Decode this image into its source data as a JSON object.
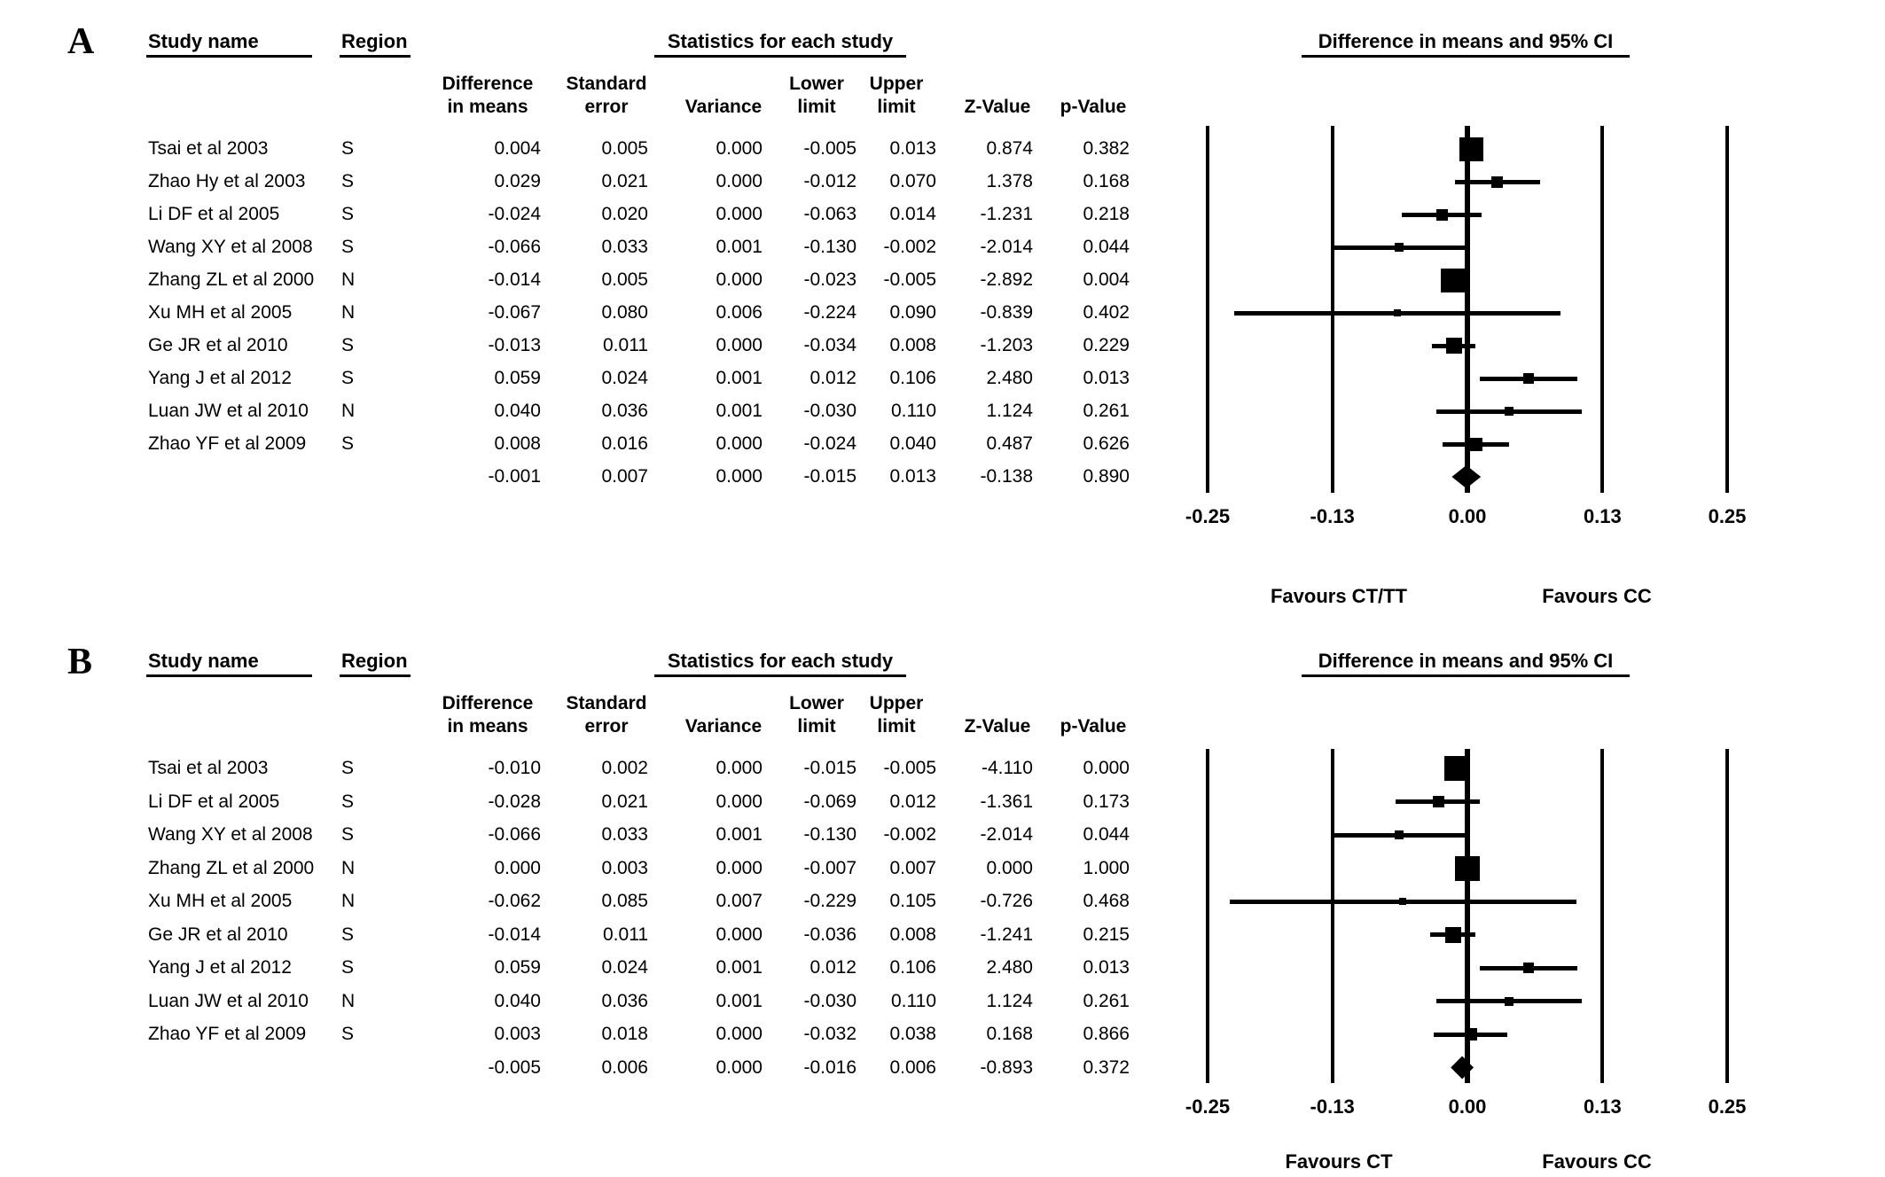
{
  "page": {
    "background": "#ffffff",
    "ink": "#000000"
  },
  "chart_data": [
    {
      "type": "forest",
      "panel_label": "A",
      "stats_title": "Statistics for each study",
      "plot_title": "Difference in means and 95% CI",
      "study_header": "Study name",
      "region_header": "Region",
      "stat_col_headers": [
        [
          "Difference",
          "in means"
        ],
        [
          "Standard",
          "error"
        ],
        [
          "",
          "Variance"
        ],
        [
          "Lower",
          "limit"
        ],
        [
          "Upper",
          "limit"
        ],
        [
          "",
          "Z-Value"
        ],
        [
          "",
          "p-Value"
        ]
      ],
      "studies": [
        {
          "study": "Tsai et al 2003",
          "region": "S",
          "cells": [
            "0.004",
            "0.005",
            "0.000",
            "-0.005",
            "0.013",
            "0.874",
            "0.382"
          ]
        },
        {
          "study": "Zhao Hy et al 2003",
          "region": "S",
          "cells": [
            "0.029",
            "0.021",
            "0.000",
            "-0.012",
            "0.070",
            "1.378",
            "0.168"
          ]
        },
        {
          "study": "Li DF et al 2005",
          "region": "S",
          "cells": [
            "-0.024",
            "0.020",
            "0.000",
            "-0.063",
            "0.014",
            "-1.231",
            "0.218"
          ]
        },
        {
          "study": "Wang XY et al 2008",
          "region": "S",
          "cells": [
            "-0.066",
            "0.033",
            "0.001",
            "-0.130",
            "-0.002",
            "-2.014",
            "0.044"
          ]
        },
        {
          "study": "Zhang ZL et al 2000",
          "region": "N",
          "cells": [
            "-0.014",
            "0.005",
            "0.000",
            "-0.023",
            "-0.005",
            "-2.892",
            "0.004"
          ]
        },
        {
          "study": "Xu MH et al 2005",
          "region": "N",
          "cells": [
            "-0.067",
            "0.080",
            "0.006",
            "-0.224",
            "0.090",
            "-0.839",
            "0.402"
          ]
        },
        {
          "study": "Ge JR et al 2010",
          "region": "S",
          "cells": [
            "-0.013",
            "0.011",
            "0.000",
            "-0.034",
            "0.008",
            "-1.203",
            "0.229"
          ]
        },
        {
          "study": "Yang J et al 2012",
          "region": "S",
          "cells": [
            "0.059",
            "0.024",
            "0.001",
            "0.012",
            "0.106",
            "2.480",
            "0.013"
          ]
        },
        {
          "study": "Luan JW et al 2010",
          "region": "N",
          "cells": [
            "0.040",
            "0.036",
            "0.001",
            "-0.030",
            "0.110",
            "1.124",
            "0.261"
          ]
        },
        {
          "study": "Zhao YF et al 2009",
          "region": "S",
          "cells": [
            "0.008",
            "0.016",
            "0.000",
            "-0.024",
            "0.040",
            "0.487",
            "0.626"
          ]
        }
      ],
      "summary": {
        "cells": [
          "-0.001",
          "0.007",
          "0.000",
          "-0.015",
          "0.013",
          "-0.138",
          "0.890"
        ]
      },
      "x_tick_labels": [
        "-0.25",
        "-0.13",
        "0.00",
        "0.13",
        "0.25"
      ],
      "xlim": [
        -0.25,
        0.25
      ],
      "favours_left": "Favours CT/TT",
      "favours_right": "Favours CC"
    },
    {
      "type": "forest",
      "panel_label": "B",
      "stats_title": "Statistics for each study",
      "plot_title": "Difference in means and 95% CI",
      "study_header": "Study name",
      "region_header": "Region",
      "stat_col_headers": [
        [
          "Difference",
          "in means"
        ],
        [
          "Standard",
          "error"
        ],
        [
          "",
          "Variance"
        ],
        [
          "Lower",
          "limit"
        ],
        [
          "Upper",
          "limit"
        ],
        [
          "",
          "Z-Value"
        ],
        [
          "",
          "p-Value"
        ]
      ],
      "studies": [
        {
          "study": "Tsai et al 2003",
          "region": "S",
          "cells": [
            "-0.010",
            "0.002",
            "0.000",
            "-0.015",
            "-0.005",
            "-4.110",
            "0.000"
          ]
        },
        {
          "study": "Li DF et al 2005",
          "region": "S",
          "cells": [
            "-0.028",
            "0.021",
            "0.000",
            "-0.069",
            "0.012",
            "-1.361",
            "0.173"
          ]
        },
        {
          "study": "Wang XY et al 2008",
          "region": "S",
          "cells": [
            "-0.066",
            "0.033",
            "0.001",
            "-0.130",
            "-0.002",
            "-2.014",
            "0.044"
          ]
        },
        {
          "study": "Zhang ZL et al 2000",
          "region": "N",
          "cells": [
            "0.000",
            "0.003",
            "0.000",
            "-0.007",
            "0.007",
            "0.000",
            "1.000"
          ]
        },
        {
          "study": "Xu MH et al 2005",
          "region": "N",
          "cells": [
            "-0.062",
            "0.085",
            "0.007",
            "-0.229",
            "0.105",
            "-0.726",
            "0.468"
          ]
        },
        {
          "study": "Ge JR et al 2010",
          "region": "S",
          "cells": [
            "-0.014",
            "0.011",
            "0.000",
            "-0.036",
            "0.008",
            "-1.241",
            "0.215"
          ]
        },
        {
          "study": "Yang J et al 2012",
          "region": "S",
          "cells": [
            "0.059",
            "0.024",
            "0.001",
            "0.012",
            "0.106",
            "2.480",
            "0.013"
          ]
        },
        {
          "study": "Luan JW et al 2010",
          "region": "N",
          "cells": [
            "0.040",
            "0.036",
            "0.001",
            "-0.030",
            "0.110",
            "1.124",
            "0.261"
          ]
        },
        {
          "study": "Zhao YF et al 2009",
          "region": "S",
          "cells": [
            "0.003",
            "0.018",
            "0.000",
            "-0.032",
            "0.038",
            "0.168",
            "0.866"
          ]
        }
      ],
      "summary": {
        "cells": [
          "-0.005",
          "0.006",
          "0.000",
          "-0.016",
          "0.006",
          "-0.893",
          "0.372"
        ]
      },
      "x_tick_labels": [
        "-0.25",
        "-0.13",
        "0.00",
        "0.13",
        "0.25"
      ],
      "xlim": [
        -0.25,
        0.25
      ],
      "favours_left": "Favours CT",
      "favours_right": "Favours CC"
    }
  ]
}
